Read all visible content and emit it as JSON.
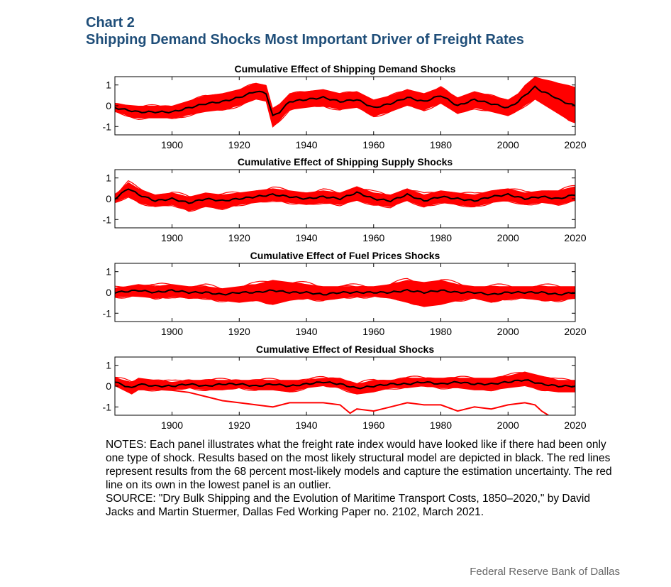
{
  "header": {
    "chart_number": "Chart 2",
    "title": "Shipping Demand Shocks Most Important Driver of Freight Rates"
  },
  "notes": {
    "notes_text": "NOTES: Each panel illustrates what the freight rate index would have looked like if there had been only one type of shock. Results based on the most likely structural model are depicted in black. The red lines represent results from the 68 percent most-likely models and capture the estimation uncertainty. The red line on its own in the lowest panel is an outlier.",
    "source_text": "SOURCE: \"Dry Bulk Shipping and the Evolution of Maritime Transport Costs, 1850–2020,\" by David Jacks and Martin Stuermer, Dallas Fed Working Paper no. 2102, March 2021."
  },
  "footer": {
    "credit": "Federal Reserve Bank of Dallas"
  },
  "colors": {
    "title": "#1f4e79",
    "band": "#ff0000",
    "median": "#000000"
  },
  "chart_data": [
    {
      "type": "line",
      "title": "Cumulative Effect of Shipping Demand Shocks",
      "xlim": [
        1883,
        2020
      ],
      "ylim": [
        -1.4,
        1.4
      ],
      "xticks": [
        1900,
        1920,
        1940,
        1960,
        1980,
        2000,
        2020
      ],
      "yticks": [
        -1,
        0,
        1
      ],
      "series": [
        {
          "role": "median",
          "x": [
            1883,
            1890,
            1900,
            1910,
            1915,
            1920,
            1925,
            1928,
            1930,
            1932,
            1935,
            1940,
            1945,
            1950,
            1955,
            1960,
            1965,
            1970,
            1975,
            1980,
            1985,
            1990,
            1995,
            2000,
            2003,
            2005,
            2008,
            2010,
            2013,
            2015,
            2018,
            2020
          ],
          "y": [
            -0.1,
            -0.3,
            -0.3,
            0.1,
            0.2,
            0.4,
            0.7,
            0.6,
            -0.5,
            -0.3,
            0.2,
            0.3,
            0.4,
            0.2,
            0.3,
            -0.1,
            0.1,
            0.4,
            0.2,
            0.5,
            0.0,
            0.3,
            0.1,
            -0.1,
            0.2,
            0.5,
            0.9,
            0.7,
            0.5,
            0.3,
            0.1,
            0.0
          ]
        },
        {
          "role": "band_upper",
          "x": [
            1883,
            1890,
            1900,
            1910,
            1915,
            1920,
            1925,
            1928,
            1930,
            1932,
            1935,
            1940,
            1945,
            1950,
            1955,
            1960,
            1965,
            1970,
            1975,
            1980,
            1985,
            1990,
            1995,
            2000,
            2003,
            2005,
            2008,
            2010,
            2013,
            2015,
            2018,
            2020
          ],
          "y": [
            0.1,
            0.0,
            0.0,
            0.5,
            0.6,
            0.8,
            1.1,
            1.0,
            -0.1,
            0.1,
            0.6,
            0.7,
            0.8,
            0.6,
            0.7,
            0.3,
            0.5,
            0.8,
            0.6,
            0.9,
            0.4,
            0.7,
            0.5,
            0.3,
            0.6,
            1.0,
            1.4,
            1.3,
            1.2,
            1.1,
            1.0,
            0.9
          ]
        },
        {
          "role": "band_lower",
          "x": [
            1883,
            1890,
            1900,
            1910,
            1915,
            1920,
            1925,
            1928,
            1930,
            1932,
            1935,
            1940,
            1945,
            1950,
            1955,
            1960,
            1965,
            1970,
            1975,
            1980,
            1985,
            1990,
            1995,
            2000,
            2003,
            2005,
            2008,
            2010,
            2013,
            2015,
            2018,
            2020
          ],
          "y": [
            -0.3,
            -0.6,
            -0.6,
            -0.3,
            -0.2,
            0.0,
            0.3,
            0.2,
            -1.0,
            -0.7,
            -0.2,
            -0.1,
            0.0,
            -0.2,
            -0.1,
            -0.5,
            -0.3,
            0.0,
            -0.2,
            0.1,
            -0.4,
            -0.1,
            -0.3,
            -0.5,
            -0.2,
            0.0,
            0.3,
            0.1,
            -0.2,
            -0.4,
            -0.7,
            -0.8
          ]
        }
      ]
    },
    {
      "type": "line",
      "title": "Cumulative Effect of Shipping Supply Shocks",
      "xlim": [
        1883,
        2020
      ],
      "ylim": [
        -1.4,
        1.4
      ],
      "xticks": [
        1900,
        1920,
        1940,
        1960,
        1980,
        2000,
        2020
      ],
      "yticks": [
        -1,
        0,
        1
      ],
      "series": [
        {
          "role": "median",
          "x": [
            1883,
            1887,
            1890,
            1895,
            1900,
            1905,
            1910,
            1915,
            1920,
            1925,
            1930,
            1935,
            1940,
            1945,
            1950,
            1955,
            1960,
            1965,
            1970,
            1975,
            1980,
            1985,
            1990,
            1995,
            2000,
            2005,
            2010,
            2015,
            2020
          ],
          "y": [
            0.0,
            0.5,
            0.2,
            -0.1,
            0.0,
            -0.2,
            0.0,
            -0.1,
            0.0,
            0.1,
            0.2,
            0.1,
            0.0,
            0.1,
            0.0,
            0.3,
            0.0,
            -0.1,
            0.2,
            -0.1,
            0.1,
            0.0,
            -0.1,
            0.1,
            0.2,
            0.0,
            0.1,
            0.0,
            0.2
          ]
        },
        {
          "role": "band_upper",
          "x": [
            1883,
            1887,
            1890,
            1895,
            1900,
            1905,
            1910,
            1915,
            1920,
            1925,
            1930,
            1935,
            1940,
            1945,
            1950,
            1955,
            1960,
            1965,
            1970,
            1975,
            1980,
            1985,
            1990,
            1995,
            2000,
            2005,
            2010,
            2015,
            2020
          ],
          "y": [
            0.2,
            0.8,
            0.5,
            0.2,
            0.3,
            0.1,
            0.3,
            0.2,
            0.3,
            0.4,
            0.5,
            0.4,
            0.3,
            0.4,
            0.3,
            0.6,
            0.3,
            0.2,
            0.5,
            0.2,
            0.4,
            0.3,
            0.2,
            0.4,
            0.5,
            0.3,
            0.4,
            0.4,
            0.6
          ]
        },
        {
          "role": "band_lower",
          "x": [
            1883,
            1887,
            1890,
            1895,
            1900,
            1905,
            1910,
            1915,
            1920,
            1925,
            1930,
            1935,
            1940,
            1945,
            1950,
            1955,
            1960,
            1965,
            1970,
            1975,
            1980,
            1985,
            1990,
            1995,
            2000,
            2005,
            2010,
            2015,
            2020
          ],
          "y": [
            -0.2,
            0.1,
            -0.2,
            -0.4,
            -0.3,
            -0.6,
            -0.4,
            -0.5,
            -0.3,
            -0.2,
            -0.1,
            -0.2,
            -0.3,
            -0.2,
            -0.3,
            -0.1,
            -0.3,
            -0.4,
            -0.1,
            -0.4,
            -0.2,
            -0.3,
            -0.4,
            -0.2,
            -0.1,
            -0.3,
            -0.2,
            -0.3,
            -0.1
          ]
        }
      ]
    },
    {
      "type": "line",
      "title": "Cumulative Effect of Fuel Prices Shocks",
      "xlim": [
        1883,
        2020
      ],
      "ylim": [
        -1.4,
        1.4
      ],
      "xticks": [
        1900,
        1920,
        1940,
        1960,
        1980,
        2000,
        2020
      ],
      "yticks": [
        -1,
        0,
        1
      ],
      "series": [
        {
          "role": "median",
          "x": [
            1883,
            1890,
            1895,
            1900,
            1905,
            1910,
            1915,
            1920,
            1925,
            1930,
            1935,
            1940,
            1945,
            1950,
            1955,
            1960,
            1965,
            1970,
            1975,
            1980,
            1985,
            1990,
            1995,
            2000,
            2005,
            2010,
            2015,
            2020
          ],
          "y": [
            0.0,
            0.1,
            0.0,
            0.1,
            0.0,
            0.0,
            -0.1,
            0.0,
            0.0,
            0.1,
            0.0,
            0.0,
            -0.1,
            0.0,
            0.0,
            0.0,
            0.0,
            0.1,
            0.0,
            0.1,
            0.0,
            0.0,
            -0.1,
            0.0,
            0.0,
            0.0,
            -0.1,
            0.0
          ]
        },
        {
          "role": "band_upper",
          "x": [
            1883,
            1890,
            1895,
            1900,
            1905,
            1910,
            1915,
            1920,
            1925,
            1930,
            1935,
            1940,
            1945,
            1950,
            1955,
            1960,
            1965,
            1970,
            1975,
            1980,
            1985,
            1990,
            1995,
            2000,
            2005,
            2010,
            2015,
            2020
          ],
          "y": [
            0.2,
            0.4,
            0.3,
            0.4,
            0.3,
            0.3,
            0.2,
            0.3,
            0.4,
            0.6,
            0.5,
            0.4,
            0.3,
            0.3,
            0.3,
            0.3,
            0.4,
            0.6,
            0.5,
            0.6,
            0.4,
            0.3,
            0.3,
            0.3,
            0.3,
            0.3,
            0.3,
            0.3
          ]
        },
        {
          "role": "band_lower",
          "x": [
            1883,
            1890,
            1895,
            1900,
            1905,
            1910,
            1915,
            1920,
            1925,
            1930,
            1935,
            1940,
            1945,
            1950,
            1955,
            1960,
            1965,
            1970,
            1975,
            1980,
            1985,
            1990,
            1995,
            2000,
            2005,
            2010,
            2015,
            2020
          ],
          "y": [
            -0.2,
            -0.2,
            -0.3,
            -0.2,
            -0.3,
            -0.3,
            -0.4,
            -0.5,
            -0.4,
            -0.6,
            -0.4,
            -0.3,
            -0.4,
            -0.3,
            -0.2,
            -0.2,
            -0.3,
            -0.5,
            -0.7,
            -0.6,
            -0.4,
            -0.3,
            -0.5,
            -0.3,
            -0.3,
            -0.4,
            -0.4,
            -0.3
          ]
        }
      ]
    },
    {
      "type": "line",
      "title": "Cumulative Effect of Residual Shocks",
      "xlim": [
        1883,
        2020
      ],
      "ylim": [
        -1.4,
        1.4
      ],
      "xticks": [
        1900,
        1920,
        1940,
        1960,
        1980,
        2000,
        2020
      ],
      "yticks": [
        -1,
        0,
        1
      ],
      "series": [
        {
          "role": "median",
          "x": [
            1883,
            1888,
            1890,
            1895,
            1900,
            1905,
            1910,
            1915,
            1920,
            1925,
            1930,
            1935,
            1940,
            1945,
            1950,
            1955,
            1960,
            1965,
            1970,
            1975,
            1980,
            1985,
            1990,
            1995,
            2000,
            2005,
            2010,
            2015,
            2020
          ],
          "y": [
            0.2,
            -0.1,
            0.1,
            0.0,
            0.0,
            0.1,
            0.0,
            0.1,
            0.1,
            0.0,
            0.1,
            0.0,
            0.1,
            0.2,
            0.1,
            -0.1,
            0.0,
            0.1,
            0.1,
            0.2,
            0.1,
            0.2,
            0.1,
            0.1,
            0.2,
            0.3,
            0.1,
            0.0,
            0.0
          ]
        },
        {
          "role": "band_upper",
          "x": [
            1883,
            1888,
            1890,
            1895,
            1900,
            1905,
            1910,
            1915,
            1920,
            1925,
            1930,
            1935,
            1940,
            1945,
            1950,
            1955,
            1960,
            1965,
            1970,
            1975,
            1980,
            1985,
            1990,
            1995,
            2000,
            2005,
            2010,
            2015,
            2020
          ],
          "y": [
            0.4,
            0.2,
            0.4,
            0.3,
            0.2,
            0.3,
            0.3,
            0.3,
            0.3,
            0.3,
            0.3,
            0.3,
            0.3,
            0.4,
            0.4,
            0.1,
            0.3,
            0.3,
            0.4,
            0.4,
            0.4,
            0.4,
            0.4,
            0.4,
            0.5,
            0.7,
            0.5,
            0.3,
            0.3
          ]
        },
        {
          "role": "band_lower",
          "x": [
            1883,
            1888,
            1890,
            1895,
            1900,
            1905,
            1910,
            1915,
            1920,
            1925,
            1930,
            1935,
            1940,
            1945,
            1950,
            1955,
            1960,
            1965,
            1970,
            1975,
            1980,
            1985,
            1990,
            1995,
            2000,
            2005,
            2010,
            2015,
            2020
          ],
          "y": [
            0.0,
            -0.4,
            -0.2,
            -0.2,
            -0.2,
            -0.1,
            -0.2,
            -0.2,
            -0.1,
            -0.2,
            -0.2,
            -0.3,
            -0.1,
            0.0,
            -0.1,
            -0.4,
            -0.3,
            -0.1,
            -0.1,
            0.0,
            -0.1,
            -0.1,
            -0.2,
            -0.2,
            -0.1,
            0.0,
            -0.2,
            -0.3,
            -0.3
          ]
        },
        {
          "role": "outlier",
          "x": [
            1883,
            1890,
            1900,
            1905,
            1910,
            1915,
            1920,
            1925,
            1930,
            1935,
            1940,
            1945,
            1950,
            1953,
            1955,
            1960,
            1965,
            1970,
            1975,
            1980,
            1985,
            1990,
            1995,
            2000,
            2005,
            2008,
            2010,
            2012
          ],
          "y": [
            0.1,
            -0.1,
            -0.2,
            -0.3,
            -0.5,
            -0.7,
            -0.8,
            -0.9,
            -1.0,
            -0.8,
            -0.8,
            -0.8,
            -0.9,
            -1.3,
            -1.1,
            -1.2,
            -1.0,
            -0.8,
            -0.9,
            -0.9,
            -1.2,
            -1.0,
            -1.1,
            -0.9,
            -0.8,
            -0.9,
            -1.2,
            -1.4
          ]
        }
      ]
    }
  ]
}
